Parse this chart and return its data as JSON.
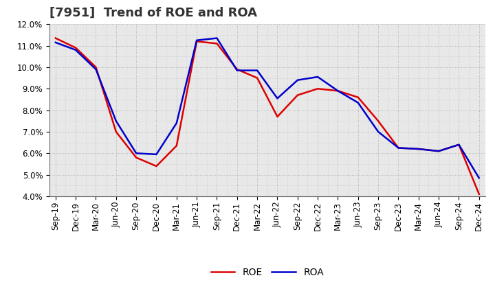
{
  "title": "[7951]  Trend of ROE and ROA",
  "x_labels": [
    "Sep-19",
    "Dec-19",
    "Mar-20",
    "Jun-20",
    "Sep-20",
    "Dec-20",
    "Mar-21",
    "Jun-21",
    "Sep-21",
    "Dec-21",
    "Mar-22",
    "Jun-22",
    "Sep-22",
    "Dec-22",
    "Mar-23",
    "Jun-23",
    "Sep-23",
    "Dec-23",
    "Mar-24",
    "Jun-24",
    "Sep-24",
    "Dec-24"
  ],
  "roe": [
    11.35,
    10.9,
    10.0,
    7.0,
    5.8,
    5.4,
    6.35,
    11.2,
    11.1,
    9.9,
    9.5,
    7.7,
    8.7,
    9.0,
    8.9,
    8.6,
    7.5,
    6.25,
    6.2,
    6.1,
    6.4,
    4.1
  ],
  "roa": [
    11.15,
    10.8,
    9.9,
    7.5,
    6.0,
    5.95,
    7.4,
    11.25,
    11.35,
    9.85,
    9.85,
    8.55,
    9.4,
    9.55,
    8.9,
    8.35,
    7.0,
    6.25,
    6.2,
    6.1,
    6.4,
    4.85
  ],
  "roe_color": "#dd0000",
  "roa_color": "#0000cc",
  "ylim": [
    4.0,
    12.0
  ],
  "yticks": [
    4.0,
    5.0,
    6.0,
    7.0,
    8.0,
    9.0,
    10.0,
    11.0,
    12.0
  ],
  "background_color": "#ffffff",
  "plot_bg_color": "#e8e8e8",
  "grid_color": "#999999",
  "title_fontsize": 13,
  "legend_fontsize": 10,
  "tick_fontsize": 8.5
}
